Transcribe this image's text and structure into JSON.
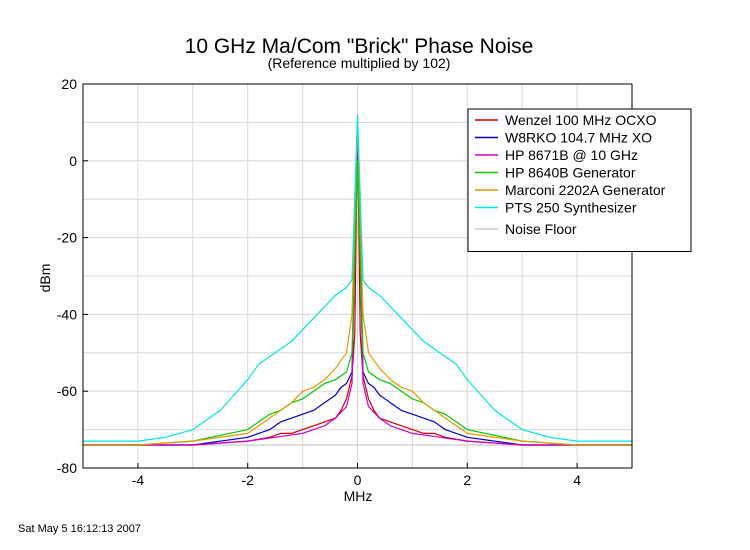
{
  "chart_data": {
    "type": "line",
    "title": "10 GHz Ma/Com \"Brick\" Phase Noise",
    "subtitle": "(Reference multiplied by 102)",
    "xlabel": "MHz",
    "ylabel": "dBm",
    "xlim": [
      -5,
      5
    ],
    "ylim": [
      -80,
      20
    ],
    "xticks": [
      -4,
      -2,
      0,
      2,
      4
    ],
    "yticks": [
      20,
      0,
      -20,
      -40,
      -60,
      -80
    ],
    "grid": true,
    "legend_position": "top-right",
    "series": [
      {
        "name": "Wenzel 100 MHz OCXO",
        "color": "#cc0000",
        "x": [
          -5,
          -4,
          -3,
          -2,
          -1.6,
          -1.4,
          -1.2,
          -1,
          -0.8,
          -0.6,
          -0.4,
          -0.3,
          -0.2,
          -0.1,
          -0.05,
          0,
          0.05,
          0.1,
          0.2,
          0.3,
          0.4,
          0.6,
          0.8,
          1,
          1.2,
          1.4,
          1.6,
          2,
          3,
          4,
          5
        ],
        "y": [
          -74,
          -74,
          -74,
          -73,
          -72,
          -71,
          -71,
          -70,
          -69,
          -68,
          -67,
          -65,
          -62,
          -56,
          -45,
          10,
          -45,
          -56,
          -62,
          -65,
          -67,
          -68,
          -69,
          -70,
          -71,
          -71,
          -72,
          -73,
          -74,
          -74,
          -74
        ]
      },
      {
        "name": "W8RKO 104.7 MHz XO",
        "color": "#0000cc",
        "x": [
          -5,
          -4,
          -3,
          -2,
          -1.8,
          -1.6,
          -1.4,
          -1.2,
          -1,
          -0.8,
          -0.6,
          -0.4,
          -0.3,
          -0.2,
          -0.1,
          0,
          0.1,
          0.2,
          0.3,
          0.4,
          0.6,
          0.8,
          1,
          1.2,
          1.4,
          1.6,
          1.8,
          2,
          3,
          4,
          5
        ],
        "y": [
          -74,
          -74,
          -74,
          -72,
          -71,
          -70,
          -68,
          -67,
          -66,
          -65,
          -63,
          -61,
          -59,
          -58,
          -55,
          5,
          -55,
          -58,
          -59,
          -61,
          -63,
          -65,
          -66,
          -67,
          -68,
          -70,
          -71,
          -72,
          -74,
          -74,
          -74
        ]
      },
      {
        "name": "HP 8671B @ 10 GHz",
        "color": "#cc00cc",
        "x": [
          -5,
          -4,
          -3,
          -2,
          -1.5,
          -1,
          -0.8,
          -0.6,
          -0.4,
          -0.2,
          -0.1,
          0,
          0.1,
          0.2,
          0.4,
          0.6,
          0.8,
          1,
          1.5,
          2,
          3,
          4,
          5
        ],
        "y": [
          -74,
          -74,
          -74,
          -73,
          -72,
          -71,
          -70,
          -69,
          -67,
          -64,
          -58,
          10,
          -58,
          -64,
          -67,
          -69,
          -70,
          -71,
          -72,
          -73,
          -74,
          -74,
          -74
        ]
      },
      {
        "name": "HP 8640B Generator",
        "color": "#00cc00",
        "x": [
          -5,
          -4,
          -3,
          -2,
          -1.8,
          -1.6,
          -1.4,
          -1.2,
          -1,
          -0.8,
          -0.6,
          -0.4,
          -0.3,
          -0.2,
          -0.1,
          0,
          0.1,
          0.2,
          0.3,
          0.4,
          0.6,
          0.8,
          1,
          1.2,
          1.4,
          1.6,
          1.8,
          2,
          3,
          4,
          5
        ],
        "y": [
          -74,
          -74,
          -73,
          -70,
          -68,
          -66,
          -65,
          -63,
          -62,
          -60,
          -58,
          -57,
          -56,
          -55,
          -50,
          0,
          -50,
          -55,
          -56,
          -57,
          -58,
          -60,
          -62,
          -63,
          -65,
          -66,
          -68,
          -70,
          -73,
          -74,
          -74
        ]
      },
      {
        "name": "Marconi 2202A Generator",
        "color": "#e69900",
        "x": [
          -5,
          -4,
          -3,
          -2,
          -1.6,
          -1.4,
          -1.2,
          -1,
          -0.8,
          -0.6,
          -0.4,
          -0.2,
          -0.1,
          0,
          0.1,
          0.2,
          0.4,
          0.6,
          0.8,
          1,
          1.2,
          1.4,
          1.6,
          2,
          3,
          4,
          5
        ],
        "y": [
          -74,
          -74,
          -73,
          -71,
          -67,
          -65,
          -63,
          -60,
          -59,
          -57,
          -54,
          -50,
          -40,
          10,
          -40,
          -50,
          -54,
          -57,
          -59,
          -60,
          -63,
          -65,
          -67,
          -71,
          -73,
          -74,
          -74
        ]
      },
      {
        "name": "PTS 250 Synthesizer",
        "color": "#00e5e5",
        "x": [
          -5,
          -4,
          -3.5,
          -3,
          -2.5,
          -2,
          -1.8,
          -1.6,
          -1.4,
          -1.2,
          -1,
          -0.8,
          -0.6,
          -0.4,
          -0.2,
          -0.1,
          0,
          0.1,
          0.2,
          0.4,
          0.6,
          0.8,
          1,
          1.2,
          1.4,
          1.6,
          1.8,
          2,
          2.5,
          3,
          3.5,
          4,
          5
        ],
        "y": [
          -73,
          -73,
          -72,
          -70,
          -65,
          -57,
          -53,
          -51,
          -49,
          -47,
          -44,
          -41,
          -38,
          -35,
          -33,
          -31,
          12,
          -31,
          -33,
          -35,
          -38,
          -41,
          -44,
          -47,
          -49,
          -51,
          -53,
          -57,
          -65,
          -70,
          -72,
          -73,
          -73
        ]
      },
      {
        "name": "Noise Floor",
        "color": "#cccccc",
        "x": [
          -5,
          -4,
          -3,
          -2,
          -1,
          -0.5,
          0,
          0.5,
          1,
          2,
          3,
          4,
          5
        ],
        "y": [
          -74,
          -74,
          -74,
          -74,
          -74,
          -74,
          -74,
          -74,
          -74,
          -74,
          -74,
          -74,
          -74
        ]
      }
    ]
  },
  "footer_timestamp": "Sat May  5 16:12:13 2007"
}
